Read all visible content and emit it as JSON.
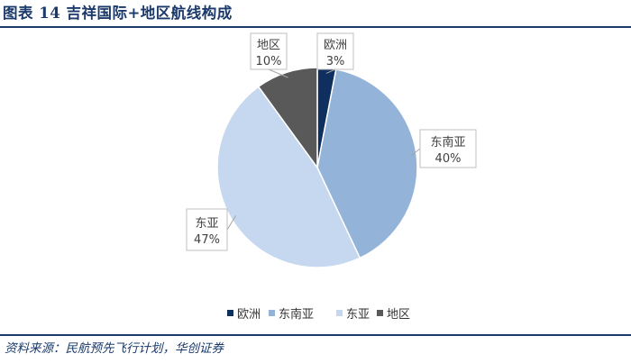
{
  "header": {
    "title": "图表 14  吉祥国际+地区航线构成"
  },
  "footer": {
    "source": "资料来源：民航预先飞行计划，华创证券"
  },
  "chart_data": {
    "type": "pie",
    "title": "",
    "legend_position": "bottom",
    "categories": [
      "欧洲",
      "东南亚",
      "东亚",
      "地区"
    ],
    "values": [
      3,
      40,
      47,
      10
    ],
    "labels": [
      "3%",
      "40%",
      "47%",
      "10%"
    ],
    "colors": [
      "#0f2f5e",
      "#94b3d9",
      "#c5d8ef",
      "#595959"
    ]
  }
}
